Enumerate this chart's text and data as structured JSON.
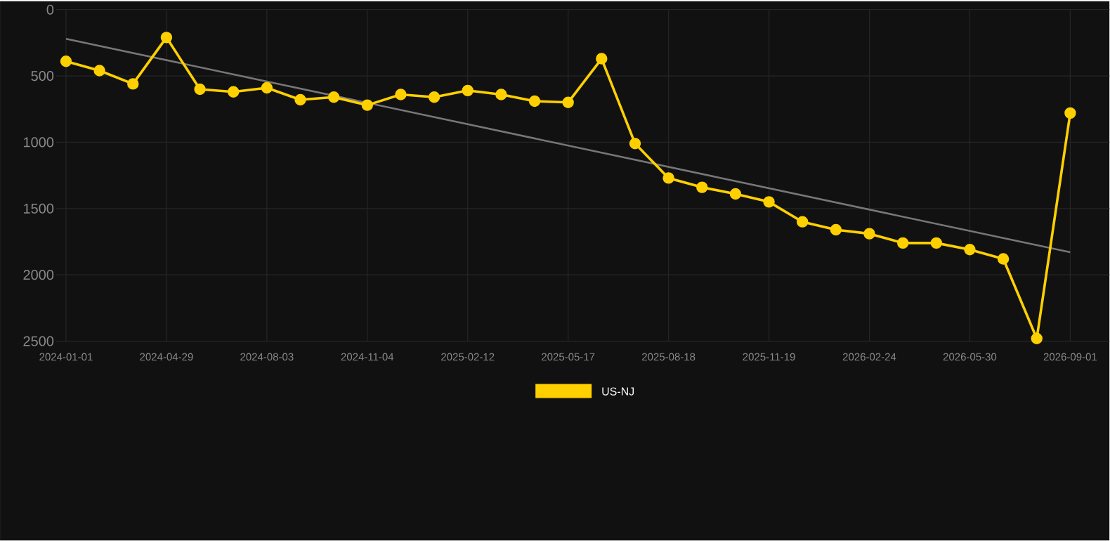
{
  "chart_data": {
    "type": "line",
    "categories": [
      "2024-01-01",
      null,
      null,
      "2024-04-29",
      null,
      null,
      "2024-08-03",
      null,
      null,
      "2024-11-04",
      null,
      null,
      "2025-02-12",
      null,
      null,
      "2025-05-17",
      null,
      null,
      "2025-08-18",
      null,
      null,
      "2025-11-19",
      null,
      null,
      "2026-02-24",
      null,
      null,
      "2026-05-30",
      null,
      null,
      "2026-09-01"
    ],
    "series": [
      {
        "name": "US-NJ",
        "color": "#ffd000",
        "marker": "circle",
        "values": [
          390,
          460,
          560,
          210,
          600,
          620,
          590,
          680,
          660,
          720,
          640,
          660,
          610,
          640,
          690,
          700,
          370,
          1010,
          1270,
          1340,
          1390,
          1450,
          1600,
          1660,
          1690,
          1760,
          1760,
          1810,
          1880,
          2480,
          780
        ]
      },
      {
        "color": "#777777",
        "marker": "none",
        "values": [
          220,
          null,
          null,
          null,
          null,
          null,
          null,
          null,
          null,
          null,
          null,
          null,
          null,
          null,
          null,
          null,
          null,
          null,
          null,
          null,
          null,
          null,
          null,
          null,
          null,
          null,
          null,
          null,
          null,
          null,
          1830
        ]
      }
    ],
    "ylim": [
      2500,
      0
    ],
    "yticks": [
      0,
      500,
      1000,
      1500,
      2000,
      2500
    ],
    "grid": true,
    "legend": "bottom"
  }
}
